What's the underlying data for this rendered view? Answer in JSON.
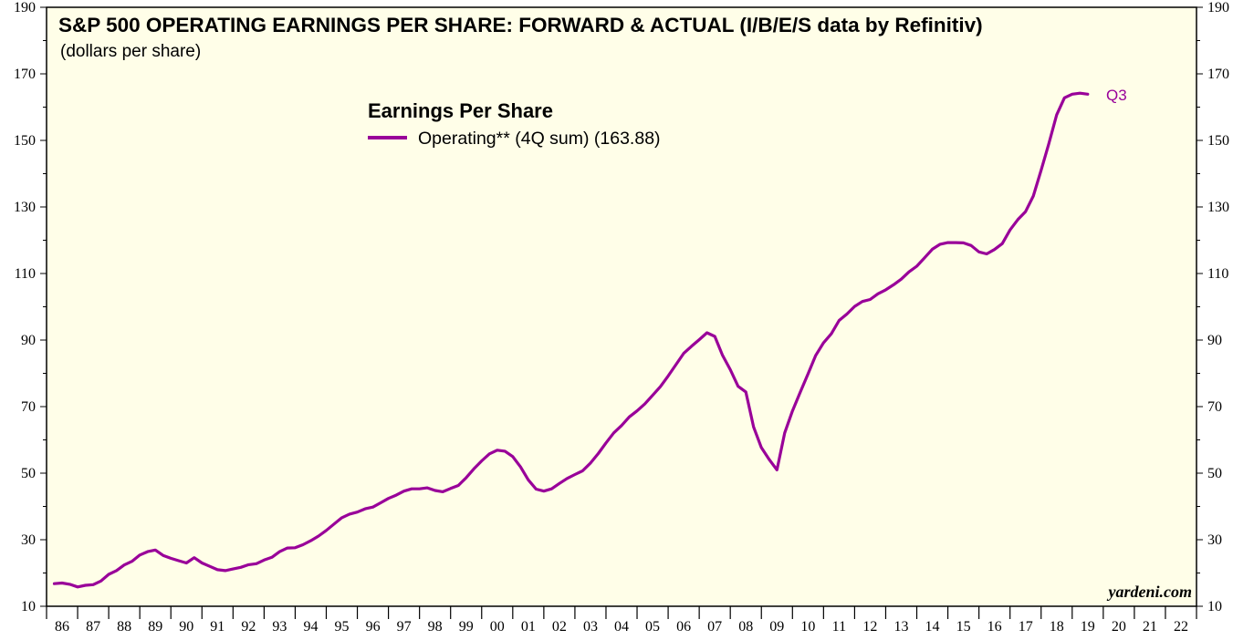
{
  "colors": {
    "plot_background": "#fffee8",
    "series_line": "#990099",
    "axis": "#000000"
  },
  "chart_data": {
    "type": "line",
    "title": "S&P 500 OPERATING EARNINGS PER SHARE: FORWARD & ACTUAL (I/B/E/S data by Refinitiv)",
    "subtitle": "(dollars per share)",
    "legend_title": "Earnings Per Share",
    "legend_placement": "top-center",
    "ylim": [
      10,
      190
    ],
    "yticks": [
      10,
      30,
      50,
      70,
      90,
      110,
      130,
      150,
      170,
      190
    ],
    "xlim": [
      1986,
      2023
    ],
    "xtick_labels": [
      "86",
      "87",
      "88",
      "89",
      "90",
      "91",
      "92",
      "93",
      "94",
      "95",
      "96",
      "97",
      "98",
      "99",
      "00",
      "01",
      "02",
      "03",
      "04",
      "05",
      "06",
      "07",
      "08",
      "09",
      "10",
      "11",
      "12",
      "13",
      "14",
      "15",
      "16",
      "17",
      "18",
      "19",
      "20",
      "21",
      "22"
    ],
    "grid": false,
    "end_label": "Q3",
    "watermark": "yardeni.com",
    "series": [
      {
        "name": "Operating** (4Q sum) (163.88)",
        "x": [
          1986.25,
          1986.5,
          1986.75,
          1987.0,
          1987.25,
          1987.5,
          1987.75,
          1988.0,
          1988.25,
          1988.5,
          1988.75,
          1989.0,
          1989.25,
          1989.5,
          1989.75,
          1990.0,
          1990.25,
          1990.5,
          1990.75,
          1991.0,
          1991.25,
          1991.5,
          1991.75,
          1992.0,
          1992.25,
          1992.5,
          1992.75,
          1993.0,
          1993.25,
          1993.5,
          1993.75,
          1994.0,
          1994.25,
          1994.5,
          1994.75,
          1995.0,
          1995.25,
          1995.5,
          1995.75,
          1996.0,
          1996.25,
          1996.5,
          1996.75,
          1997.0,
          1997.25,
          1997.5,
          1997.75,
          1998.0,
          1998.25,
          1998.5,
          1998.75,
          1999.0,
          1999.25,
          1999.5,
          1999.75,
          2000.0,
          2000.25,
          2000.5,
          2000.75,
          2001.0,
          2001.25,
          2001.5,
          2001.75,
          2002.0,
          2002.25,
          2002.5,
          2002.75,
          2003.0,
          2003.25,
          2003.5,
          2003.75,
          2004.0,
          2004.25,
          2004.5,
          2004.75,
          2005.0,
          2005.25,
          2005.5,
          2005.75,
          2006.0,
          2006.25,
          2006.5,
          2006.75,
          2007.0,
          2007.25,
          2007.5,
          2007.75,
          2008.0,
          2008.25,
          2008.5,
          2008.75,
          2009.0,
          2009.25,
          2009.5,
          2009.75,
          2010.0,
          2010.25,
          2010.5,
          2010.75,
          2011.0,
          2011.25,
          2011.5,
          2011.75,
          2012.0,
          2012.25,
          2012.5,
          2012.75,
          2013.0,
          2013.25,
          2013.5,
          2013.75,
          2014.0,
          2014.25,
          2014.5,
          2014.75,
          2015.0,
          2015.25,
          2015.5,
          2015.75,
          2016.0,
          2016.25,
          2016.5,
          2016.75,
          2017.0,
          2017.25,
          2017.5,
          2017.75,
          2018.0,
          2018.25,
          2018.5,
          2018.75,
          2019.0,
          2019.25,
          2019.5
        ],
        "values": [
          16.8,
          17.0,
          16.6,
          15.8,
          16.3,
          16.5,
          17.6,
          19.6,
          20.7,
          22.4,
          23.5,
          25.4,
          26.4,
          26.9,
          25.3,
          24.4,
          23.7,
          23.0,
          24.6,
          23.0,
          22.0,
          21.0,
          20.7,
          21.2,
          21.7,
          22.5,
          22.8,
          23.9,
          24.7,
          26.4,
          27.5,
          27.6,
          28.5,
          29.7,
          31.1,
          32.8,
          34.7,
          36.6,
          37.7,
          38.3,
          39.3,
          39.8,
          41.1,
          42.4,
          43.4,
          44.6,
          45.3,
          45.3,
          45.6,
          44.8,
          44.4,
          45.4,
          46.3,
          48.6,
          51.3,
          53.7,
          55.8,
          56.9,
          56.6,
          55.0,
          51.9,
          48.0,
          45.2,
          44.6,
          45.3,
          46.9,
          48.4,
          49.6,
          50.7,
          53.0,
          55.9,
          59.1,
          62.1,
          64.3,
          66.9,
          68.7,
          70.8,
          73.4,
          76.0,
          79.2,
          82.6,
          86.0,
          88.1,
          90.1,
          92.2,
          91.1,
          85.4,
          81.1,
          76.1,
          74.4,
          63.9,
          57.7,
          54.1,
          51.0,
          62.1,
          68.7,
          74.3,
          79.8,
          85.4,
          89.2,
          91.9,
          95.9,
          97.8,
          100.1,
          101.6,
          102.2,
          103.9,
          105.1,
          106.6,
          108.3,
          110.5,
          112.2,
          114.7,
          117.3,
          118.8,
          119.3,
          119.3,
          119.2,
          118.4,
          116.5,
          115.9,
          117.2,
          119.0,
          123.1,
          126.2,
          128.6,
          133.3,
          141.0,
          149.0,
          157.7,
          162.8,
          163.9,
          164.2,
          163.88
        ]
      }
    ]
  }
}
